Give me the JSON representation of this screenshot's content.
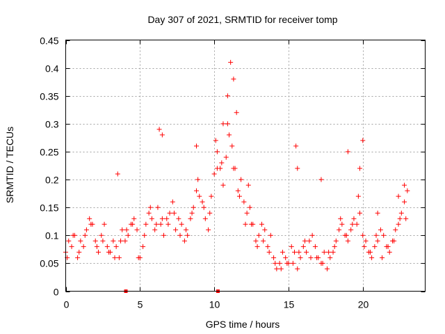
{
  "chart_data": {
    "type": "scatter",
    "title": "Day 307 of 2021, SRMTID for receiver tomp",
    "xlabel": "GPS time / hours",
    "ylabel": "SRMTID / TECUs",
    "xlim": [
      0,
      24.2
    ],
    "ylim": [
      0,
      0.45
    ],
    "xticks": [
      0,
      5,
      10,
      15,
      20
    ],
    "xtick_labels": [
      "0",
      "5",
      "10",
      "15",
      "20"
    ],
    "yticks": [
      0,
      0.05,
      0.1,
      0.15,
      0.2,
      0.25,
      0.3,
      0.35,
      0.4,
      0.45
    ],
    "ytick_labels": [
      "0",
      "0.05",
      "0.1",
      "0.15",
      "0.2",
      "0.25",
      "0.3",
      "0.35",
      "0.4",
      "0.45"
    ],
    "grid": true,
    "marker": "plus",
    "color": "#ff0000",
    "series": [
      {
        "name": "SRMTID",
        "x": [
          0.0,
          0.2,
          0.4,
          0.6,
          0.8,
          1.0,
          1.2,
          1.4,
          1.6,
          1.8,
          2.0,
          2.2,
          2.4,
          2.6,
          2.8,
          3.0,
          3.2,
          3.4,
          3.6,
          3.8,
          4.0,
          4.2,
          4.4,
          4.6,
          4.8,
          5.0,
          5.2,
          5.4,
          5.6,
          5.8,
          6.0,
          6.2,
          6.4,
          6.6,
          6.8,
          7.0,
          7.2,
          7.4,
          7.6,
          7.8,
          8.0,
          8.2,
          8.4,
          8.6,
          8.8,
          9.0,
          9.2,
          9.4,
          9.6,
          9.8,
          10.0,
          10.2,
          10.4,
          10.6,
          10.8,
          11.0,
          11.2,
          11.4,
          11.6,
          11.8,
          12.0,
          12.2,
          12.4,
          12.6,
          12.8,
          13.0,
          13.2,
          13.4,
          13.6,
          13.8,
          14.0,
          14.2,
          14.4,
          14.6,
          14.8,
          15.0,
          15.2,
          15.4,
          15.6,
          15.8,
          16.0,
          16.2,
          16.4,
          16.6,
          16.8,
          17.0,
          17.2,
          17.4,
          17.6,
          17.8,
          18.0,
          18.2,
          18.4,
          18.6,
          18.8,
          19.0,
          19.2,
          19.4,
          19.6,
          19.8,
          20.0,
          20.2,
          20.4,
          20.6,
          20.8,
          21.0,
          21.2,
          21.4,
          21.6,
          21.8,
          22.0,
          22.2,
          22.4,
          22.6,
          22.8,
          23.0,
          0.1,
          0.5,
          0.9,
          1.3,
          1.7,
          2.1,
          2.5,
          2.9,
          3.3,
          3.7,
          4.1,
          4.5,
          4.9,
          5.3,
          5.7,
          6.1,
          6.5,
          6.9,
          7.3,
          7.7,
          8.1,
          8.5,
          8.9,
          9.3,
          9.7,
          10.1,
          10.5,
          10.9,
          11.3,
          11.7,
          12.1,
          12.5,
          12.9,
          13.3,
          13.7,
          14.1,
          14.5,
          14.9,
          15.3,
          15.7,
          16.1,
          16.5,
          16.9,
          17.3,
          17.7,
          18.1,
          18.5,
          18.9,
          19.3,
          19.7,
          20.1,
          20.5,
          20.9,
          21.3,
          21.7,
          22.1,
          22.5,
          22.9,
          3.5,
          6.3,
          6.5,
          8.8,
          10.2,
          10.6,
          10.9,
          11.1,
          11.3,
          11.5,
          12.3,
          15.5,
          15.6,
          17.2,
          19.0,
          19.8,
          20.0,
          21.0,
          22.4,
          22.8
        ],
        "y": [
          0.07,
          0.09,
          0.08,
          0.1,
          0.06,
          0.09,
          0.08,
          0.11,
          0.13,
          0.12,
          0.09,
          0.07,
          0.1,
          0.12,
          0.08,
          0.07,
          0.09,
          0.08,
          0.06,
          0.11,
          0.09,
          0.1,
          0.12,
          0.13,
          0.11,
          0.06,
          0.08,
          0.12,
          0.14,
          0.13,
          0.11,
          0.15,
          0.12,
          0.1,
          0.13,
          0.14,
          0.16,
          0.11,
          0.13,
          0.12,
          0.09,
          0.1,
          0.13,
          0.15,
          0.18,
          0.17,
          0.16,
          0.13,
          0.11,
          0.17,
          0.21,
          0.25,
          0.22,
          0.19,
          0.24,
          0.28,
          0.26,
          0.22,
          0.18,
          0.2,
          0.16,
          0.14,
          0.15,
          0.12,
          0.09,
          0.1,
          0.12,
          0.11,
          0.08,
          0.1,
          0.06,
          0.04,
          0.05,
          0.07,
          0.06,
          0.05,
          0.08,
          0.07,
          0.04,
          0.06,
          0.08,
          0.07,
          0.09,
          0.1,
          0.08,
          0.06,
          0.05,
          0.07,
          0.04,
          0.06,
          0.07,
          0.09,
          0.11,
          0.12,
          0.1,
          0.09,
          0.11,
          0.13,
          0.12,
          0.14,
          0.1,
          0.09,
          0.07,
          0.06,
          0.08,
          0.09,
          0.11,
          0.1,
          0.08,
          0.07,
          0.09,
          0.11,
          0.12,
          0.14,
          0.16,
          0.18,
          0.06,
          0.1,
          0.07,
          0.1,
          0.12,
          0.08,
          0.09,
          0.07,
          0.06,
          0.09,
          0.11,
          0.12,
          0.06,
          0.1,
          0.15,
          0.12,
          0.13,
          0.12,
          0.14,
          0.1,
          0.11,
          0.14,
          0.2,
          0.15,
          0.14,
          0.27,
          0.23,
          0.3,
          0.22,
          0.17,
          0.12,
          0.12,
          0.08,
          0.09,
          0.07,
          0.05,
          0.04,
          0.05,
          0.05,
          0.07,
          0.09,
          0.06,
          0.06,
          0.05,
          0.07,
          0.08,
          0.13,
          0.1,
          0.12,
          0.17,
          0.08,
          0.07,
          0.1,
          0.06,
          0.08,
          0.09,
          0.13,
          0.13,
          0.21,
          0.29,
          0.28,
          0.26,
          0.22,
          0.3,
          0.35,
          0.41,
          0.38,
          0.32,
          0.19,
          0.26,
          0.22,
          0.2,
          0.25,
          0.22,
          0.27,
          0.14,
          0.17,
          0.19
        ]
      }
    ],
    "zero_markers_x": [
      4.05,
      10.25
    ]
  }
}
